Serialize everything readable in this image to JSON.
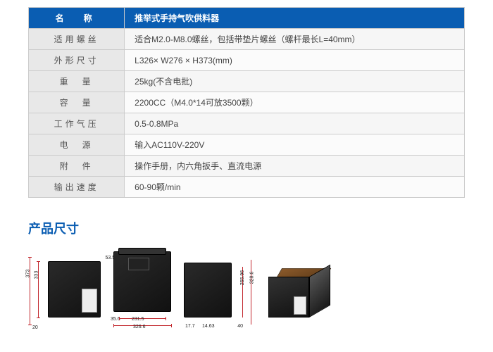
{
  "table": {
    "header": {
      "name": "名　称",
      "value": "推举式手持气吹供料器"
    },
    "rows": [
      {
        "label": "适用螺丝",
        "value": "适合M2.0-M8.0螺丝，包括带垫片螺丝（螺杆最长L=40mm）"
      },
      {
        "label": "外形尺寸",
        "value": "L326× W276 × H373(mm)"
      },
      {
        "label": "重　量",
        "value": "25kg(不含电批)"
      },
      {
        "label": "容　量",
        "value": "2200CC（M4.0*14可放3500颗）"
      },
      {
        "label": "工作气压",
        "value": "0.5-0.8MPa"
      },
      {
        "label": "电　源",
        "value": "输入AC110V-220V"
      },
      {
        "label": "附　件",
        "value": "操作手册，内六角扳手、直流电源"
      },
      {
        "label": "输出速度",
        "value": "60-90颗/min"
      }
    ]
  },
  "section_title": "产品尺寸",
  "dims": {
    "view1": {
      "h_outer": "373",
      "h_inner": "333",
      "top_gap": "53.54",
      "bottom_gap": "20"
    },
    "view2": {
      "bottom_inner": "231.5",
      "bottom_outer": "326.6",
      "side": "35.6"
    },
    "view3": {
      "height": "255.96",
      "h2": "328.6",
      "small1": "17.7",
      "small2": "14.63",
      "small3": "40"
    }
  },
  "colors": {
    "brand": "#0a5db2",
    "dim_line": "#c2272d",
    "row_label_bg": "#e8e8e8",
    "row_val_bg": "#f6f6f6"
  }
}
